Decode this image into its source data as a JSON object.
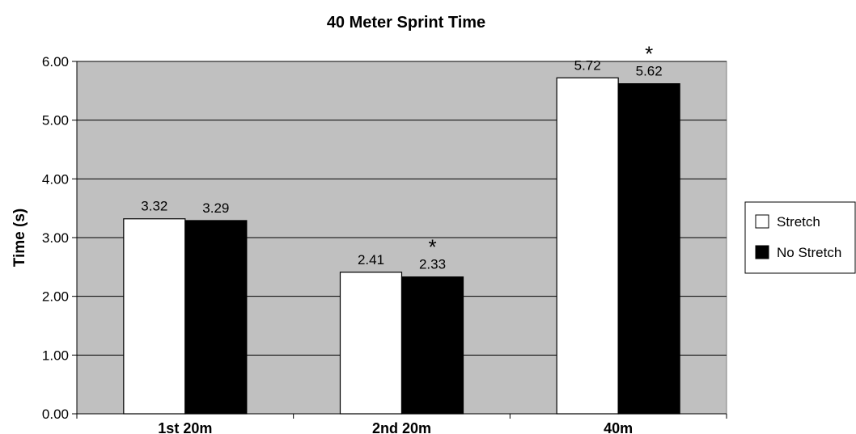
{
  "chart_data": {
    "type": "bar",
    "title": "40 Meter Sprint Time",
    "xlabel": "",
    "ylabel": "Time (s)",
    "ylim": [
      0,
      6
    ],
    "yticks": [
      "0.00",
      "1.00",
      "2.00",
      "3.00",
      "4.00",
      "5.00",
      "6.00"
    ],
    "categories": [
      "1st 20m",
      "2nd 20m",
      "40m"
    ],
    "series": [
      {
        "name": "Stretch",
        "values": [
          3.32,
          2.41,
          5.72
        ],
        "labels": [
          "3.32",
          "2.41",
          "5.72"
        ],
        "color": "#ffffff"
      },
      {
        "name": "No Stretch",
        "values": [
          3.29,
          2.33,
          5.62
        ],
        "labels": [
          "3.29",
          "2.33",
          "5.62"
        ],
        "color": "#000000"
      }
    ],
    "significance_marks": [
      {
        "category": "2nd 20m",
        "symbol": "*"
      },
      {
        "category": "40m",
        "symbol": "*"
      }
    ],
    "plot_background": "#c0c0c0",
    "grid": true,
    "legend_position": "right"
  }
}
